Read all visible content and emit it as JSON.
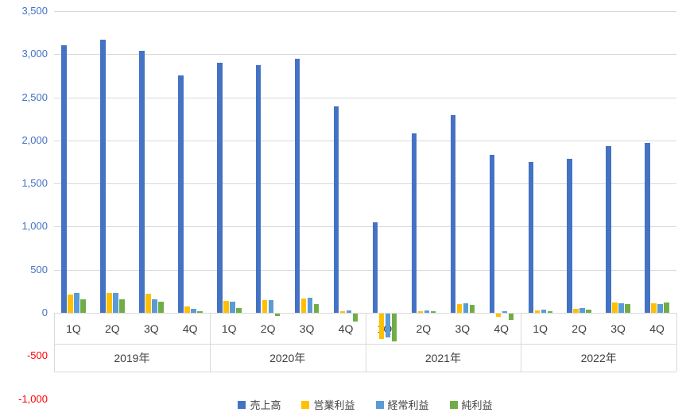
{
  "chart_data": {
    "type": "bar",
    "title": "",
    "grid": true,
    "legend_position": "bottom",
    "y_axis": {
      "min": -1000,
      "max": 3500,
      "step": 500,
      "tick_labels": [
        "3,500",
        "3,000",
        "2,500",
        "2,000",
        "1,500",
        "1,000",
        "500",
        "0",
        "-500",
        "-1,000"
      ]
    },
    "x_axis": {
      "years": [
        {
          "label": "2019年",
          "quarters": [
            "1Q",
            "2Q",
            "3Q",
            "4Q"
          ]
        },
        {
          "label": "2020年",
          "quarters": [
            "1Q",
            "2Q",
            "3Q",
            "4Q"
          ]
        },
        {
          "label": "2021年",
          "quarters": [
            "1Q",
            "2Q",
            "3Q",
            "4Q"
          ]
        },
        {
          "label": "2022年",
          "quarters": [
            "1Q",
            "2Q",
            "3Q",
            "4Q"
          ]
        }
      ]
    },
    "series": [
      {
        "name": "売上高",
        "color": "#4472C4",
        "values": [
          3100,
          3170,
          3040,
          2750,
          2900,
          2870,
          2950,
          2390,
          1050,
          2080,
          2290,
          1830,
          1750,
          1790,
          1930,
          1970
        ]
      },
      {
        "name": "営業利益",
        "color": "#FFC000",
        "values": [
          210,
          230,
          220,
          70,
          140,
          150,
          170,
          15,
          -290,
          15,
          100,
          -40,
          30,
          50,
          120,
          110
        ]
      },
      {
        "name": "経常利益",
        "color": "#5B9BD5",
        "values": [
          230,
          230,
          160,
          50,
          130,
          150,
          180,
          25,
          -280,
          25,
          110,
          20,
          40,
          60,
          110,
          100
        ]
      },
      {
        "name": "純利益",
        "color": "#70AD47",
        "values": [
          160,
          160,
          130,
          20,
          60,
          -30,
          100,
          -90,
          -320,
          15,
          95,
          -70,
          15,
          35,
          100,
          120
        ]
      }
    ]
  },
  "colors": {
    "grid": "#D9D9D9",
    "axis_text_positive": "#4472C4",
    "axis_text_negative": "#FF0000",
    "category_text": "#404040",
    "background": "#FFFFFF"
  }
}
